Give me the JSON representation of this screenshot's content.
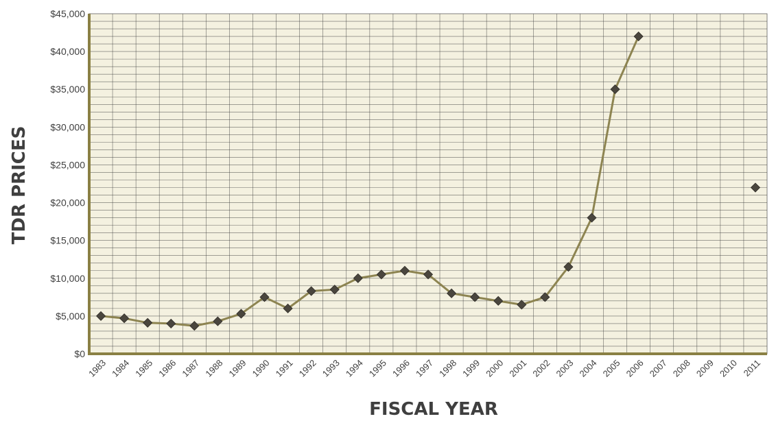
{
  "chart_data": {
    "type": "line",
    "title": "",
    "xlabel": "FISCAL YEAR",
    "ylabel": "TDR PRICES",
    "categories": [
      "1983",
      "1984",
      "1985",
      "1986",
      "1987",
      "1988",
      "1989",
      "1990",
      "1991",
      "1992",
      "1993",
      "1994",
      "1995",
      "1996",
      "1997",
      "1998",
      "1999",
      "2000",
      "2001",
      "2002",
      "2003",
      "2004",
      "2005",
      "2006",
      "2007",
      "2008",
      "2009",
      "2010",
      "2011"
    ],
    "series": [
      {
        "values": [
          5000,
          4700,
          4100,
          4000,
          3700,
          4300,
          5300,
          7500,
          6000,
          8300,
          8500,
          10000,
          10500,
          11000,
          10500,
          8000,
          7500,
          7000,
          6500,
          7500,
          11500,
          18000,
          35000,
          42000,
          null,
          null,
          null,
          null,
          null
        ],
        "connected": true
      },
      {
        "values": [
          null,
          null,
          null,
          null,
          null,
          null,
          null,
          null,
          null,
          null,
          null,
          null,
          null,
          null,
          null,
          null,
          null,
          null,
          null,
          null,
          null,
          null,
          null,
          null,
          null,
          null,
          null,
          null,
          22000
        ],
        "connected": false
      }
    ],
    "ylim": [
      0,
      45000
    ],
    "yticks": [
      "$0",
      "$5,000",
      "$10,000",
      "$15,000",
      "$20,000",
      "$25,000",
      "$30,000",
      "$35,000",
      "$40,000",
      "$45,000"
    ],
    "grid": true,
    "colors": {
      "plot_background": "#f4f1e0",
      "grid": "#3c3c3c",
      "axis": "#8a8044",
      "line": "#8d8451",
      "marker": "#4a463e"
    }
  }
}
